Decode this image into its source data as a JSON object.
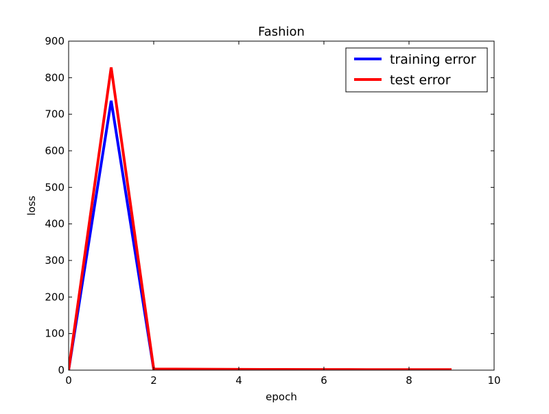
{
  "chart_data": {
    "type": "line",
    "title": "Fashion",
    "xlabel": "epoch",
    "ylabel": "loss",
    "xlim": [
      0,
      10
    ],
    "ylim": [
      0,
      900
    ],
    "xticks": [
      0,
      2,
      4,
      6,
      8,
      10
    ],
    "yticks": [
      0,
      100,
      200,
      300,
      400,
      500,
      600,
      700,
      800,
      900
    ],
    "grid": false,
    "legend_position": "top-right",
    "x": [
      0,
      1,
      2,
      3,
      4,
      5,
      6,
      7,
      8,
      9
    ],
    "series": [
      {
        "name": "training error",
        "color": "#0000ff",
        "values": [
          0,
          737,
          2,
          1.5,
          1.2,
          1,
          0.9,
          0.8,
          0.7,
          0.6
        ]
      },
      {
        "name": "test error",
        "color": "#ff0000",
        "values": [
          0,
          828,
          3,
          2.5,
          2,
          1.8,
          1.6,
          1.5,
          1.4,
          1.3
        ]
      }
    ]
  }
}
